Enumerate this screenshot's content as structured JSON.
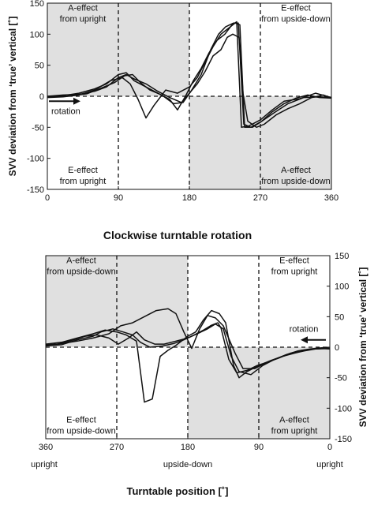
{
  "mid_title": "Clockwise turntable rotation",
  "bottom_title": "Turntable position [˚]",
  "chart_data": [
    {
      "type": "line",
      "id": "top",
      "xlim": [
        0,
        360
      ],
      "ylim": [
        -150,
        150
      ],
      "x_ticks": [
        0,
        90,
        180,
        270,
        360
      ],
      "y_ticks": [
        -150,
        -100,
        -50,
        0,
        50,
        100,
        150
      ],
      "x_tick_labels": [
        "0",
        "90",
        "180",
        "270",
        "360"
      ],
      "ylabel": "SVV deviation from ‘true’ vertical [˚]",
      "grid": false,
      "shaded_regions": [
        {
          "x": [
            0,
            180
          ],
          "y": [
            0,
            150
          ]
        },
        {
          "x": [
            180,
            360
          ],
          "y": [
            -150,
            0
          ]
        }
      ],
      "dashed_vertical_lines": [
        90,
        180,
        270
      ],
      "zero_line": "dashed",
      "annotations": [
        {
          "lines": [
            "A-effect",
            "from upright"
          ],
          "x": 45,
          "y": 143
        },
        {
          "lines": [
            "E-effect",
            "from upside-down"
          ],
          "x": 315,
          "y": 143
        },
        {
          "lines": [
            "E-effect",
            "from upright"
          ],
          "x": 45,
          "y": -118
        },
        {
          "lines": [
            "A-effect",
            "from upside-down"
          ],
          "x": 315,
          "y": -118
        }
      ],
      "rotation_arrow": {
        "label": "rotation",
        "direction": "right",
        "x": [
          2,
          42
        ],
        "y": -8
      },
      "series": [
        {
          "values": [
            [
              0,
              -2
            ],
            [
              20,
              -1
            ],
            [
              40,
              2
            ],
            [
              60,
              10
            ],
            [
              80,
              25
            ],
            [
              95,
              30
            ],
            [
              105,
              20
            ],
            [
              115,
              -5
            ],
            [
              125,
              -35
            ],
            [
              135,
              -15
            ],
            [
              150,
              10
            ],
            [
              165,
              5
            ],
            [
              180,
              15
            ],
            [
              190,
              30
            ],
            [
              200,
              55
            ],
            [
              210,
              80
            ],
            [
              220,
              100
            ],
            [
              230,
              110
            ],
            [
              238,
              118
            ],
            [
              244,
              115
            ],
            [
              250,
              -50
            ],
            [
              260,
              -50
            ],
            [
              270,
              -42
            ],
            [
              285,
              -25
            ],
            [
              300,
              -12
            ],
            [
              315,
              -3
            ],
            [
              330,
              2
            ],
            [
              345,
              -2
            ],
            [
              360,
              -3
            ]
          ]
        },
        {
          "values": [
            [
              0,
              -1
            ],
            [
              20,
              1
            ],
            [
              40,
              5
            ],
            [
              60,
              12
            ],
            [
              75,
              20
            ],
            [
              90,
              35
            ],
            [
              100,
              38
            ],
            [
              110,
              25
            ],
            [
              125,
              15
            ],
            [
              140,
              5
            ],
            [
              155,
              -5
            ],
            [
              165,
              -22
            ],
            [
              175,
              0
            ],
            [
              185,
              25
            ],
            [
              195,
              45
            ],
            [
              205,
              70
            ],
            [
              215,
              90
            ],
            [
              225,
              100
            ],
            [
              234,
              115
            ],
            [
              240,
              120
            ],
            [
              246,
              -50
            ],
            [
              255,
              -48
            ],
            [
              270,
              -38
            ],
            [
              285,
              -22
            ],
            [
              300,
              -8
            ],
            [
              320,
              -4
            ],
            [
              340,
              5
            ],
            [
              360,
              -2
            ]
          ]
        },
        {
          "values": [
            [
              0,
              0
            ],
            [
              20,
              2
            ],
            [
              40,
              3
            ],
            [
              60,
              8
            ],
            [
              75,
              15
            ],
            [
              90,
              30
            ],
            [
              100,
              35
            ],
            [
              110,
              28
            ],
            [
              125,
              20
            ],
            [
              140,
              8
            ],
            [
              155,
              -2
            ],
            [
              170,
              -10
            ],
            [
              180,
              5
            ],
            [
              190,
              20
            ],
            [
              200,
              40
            ],
            [
              210,
              65
            ],
            [
              220,
              75
            ],
            [
              228,
              95
            ],
            [
              235,
              100
            ],
            [
              243,
              95
            ],
            [
              248,
              5
            ],
            [
              254,
              -40
            ],
            [
              265,
              -50
            ],
            [
              275,
              -45
            ],
            [
              290,
              -30
            ],
            [
              305,
              -20
            ],
            [
              320,
              -12
            ],
            [
              335,
              -2
            ],
            [
              350,
              2
            ],
            [
              360,
              -3
            ]
          ]
        },
        {
          "values": [
            [
              0,
              -1
            ],
            [
              25,
              0
            ],
            [
              50,
              4
            ],
            [
              70,
              14
            ],
            [
              85,
              22
            ],
            [
              98,
              33
            ],
            [
              108,
              35
            ],
            [
              118,
              22
            ],
            [
              130,
              10
            ],
            [
              145,
              2
            ],
            [
              160,
              -12
            ],
            [
              172,
              -10
            ],
            [
              182,
              8
            ],
            [
              195,
              35
            ],
            [
              207,
              75
            ],
            [
              217,
              100
            ],
            [
              226,
              112
            ],
            [
              236,
              118
            ],
            [
              242,
              118
            ],
            [
              249,
              -45
            ],
            [
              258,
              -50
            ],
            [
              272,
              -40
            ],
            [
              288,
              -26
            ],
            [
              305,
              -12
            ],
            [
              325,
              -2
            ],
            [
              345,
              -1
            ],
            [
              360,
              -2
            ]
          ]
        }
      ]
    },
    {
      "type": "line",
      "id": "bottom",
      "xlim": [
        360,
        0
      ],
      "ylim": [
        -150,
        150
      ],
      "x_ticks": [
        360,
        270,
        180,
        90,
        0
      ],
      "y_ticks": [
        -150,
        -100,
        -50,
        0,
        50,
        100,
        150
      ],
      "x_tick_labels": [
        "360",
        "270",
        "180",
        "90",
        "0"
      ],
      "x_sub_labels": [
        {
          "x": 360,
          "text": "upright"
        },
        {
          "x": 180,
          "text": "upside-down"
        },
        {
          "x": 0,
          "text": "upright"
        }
      ],
      "ylabel": "SVV deviation from ‘true’ vertical [˚]",
      "y_axis_side": "right",
      "grid": false,
      "shaded_regions": [
        {
          "x": [
            360,
            180
          ],
          "y": [
            0,
            150
          ]
        },
        {
          "x": [
            180,
            0
          ],
          "y": [
            -150,
            0
          ]
        }
      ],
      "dashed_vertical_lines": [
        270,
        180,
        90
      ],
      "zero_line": "dashed",
      "annotations": [
        {
          "lines": [
            "A-effect",
            "from upside-down"
          ],
          "x": 315,
          "y": 143
        },
        {
          "lines": [
            "E-effect",
            "from upright"
          ],
          "x": 45,
          "y": 143
        },
        {
          "lines": [
            "E-effect",
            "from upside-down"
          ],
          "x": 315,
          "y": -118
        },
        {
          "lines": [
            "A-effect",
            "from upright"
          ],
          "x": 45,
          "y": -118
        }
      ],
      "rotation_arrow": {
        "label": "rotation",
        "direction": "left",
        "x": [
          5,
          37
        ],
        "y": 12
      },
      "series": [
        {
          "values": [
            [
              360,
              5
            ],
            [
              340,
              8
            ],
            [
              320,
              15
            ],
            [
              300,
              22
            ],
            [
              285,
              28
            ],
            [
              270,
              25
            ],
            [
              258,
              20
            ],
            [
              245,
              10
            ],
            [
              235,
              -90
            ],
            [
              225,
              -85
            ],
            [
              215,
              -15
            ],
            [
              205,
              -5
            ],
            [
              195,
              3
            ],
            [
              180,
              18
            ],
            [
              170,
              25
            ],
            [
              160,
              45
            ],
            [
              150,
              60
            ],
            [
              140,
              55
            ],
            [
              132,
              40
            ],
            [
              122,
              -30
            ],
            [
              115,
              -50
            ],
            [
              105,
              -40
            ],
            [
              90,
              -30
            ],
            [
              75,
              -22
            ],
            [
              60,
              -15
            ],
            [
              45,
              -10
            ],
            [
              30,
              -5
            ],
            [
              15,
              -2
            ],
            [
              0,
              -3
            ]
          ]
        },
        {
          "values": [
            [
              360,
              3
            ],
            [
              340,
              6
            ],
            [
              320,
              10
            ],
            [
              300,
              15
            ],
            [
              280,
              22
            ],
            [
              265,
              35
            ],
            [
              250,
              40
            ],
            [
              235,
              50
            ],
            [
              220,
              60
            ],
            [
              205,
              63
            ],
            [
              195,
              55
            ],
            [
              185,
              25
            ],
            [
              175,
              -2
            ],
            [
              165,
              30
            ],
            [
              155,
              52
            ],
            [
              145,
              48
            ],
            [
              135,
              35
            ],
            [
              120,
              -10
            ],
            [
              110,
              -35
            ],
            [
              95,
              -35
            ],
            [
              80,
              -25
            ],
            [
              65,
              -18
            ],
            [
              50,
              -10
            ],
            [
              35,
              -5
            ],
            [
              20,
              -3
            ],
            [
              0,
              -2
            ]
          ]
        },
        {
          "values": [
            [
              360,
              4
            ],
            [
              345,
              5
            ],
            [
              330,
              10
            ],
            [
              310,
              18
            ],
            [
              295,
              20
            ],
            [
              280,
              15
            ],
            [
              268,
              5
            ],
            [
              255,
              15
            ],
            [
              245,
              25
            ],
            [
              235,
              12
            ],
            [
              222,
              5
            ],
            [
              210,
              5
            ],
            [
              195,
              10
            ],
            [
              180,
              15
            ],
            [
              168,
              22
            ],
            [
              155,
              30
            ],
            [
              145,
              38
            ],
            [
              135,
              30
            ],
            [
              125,
              -15
            ],
            [
              115,
              -40
            ],
            [
              100,
              -45
            ],
            [
              85,
              -30
            ],
            [
              70,
              -20
            ],
            [
              55,
              -12
            ],
            [
              40,
              -6
            ],
            [
              25,
              -3
            ],
            [
              10,
              -1
            ],
            [
              0,
              -2
            ]
          ]
        },
        {
          "values": [
            [
              360,
              2
            ],
            [
              340,
              4
            ],
            [
              320,
              12
            ],
            [
              300,
              18
            ],
            [
              290,
              25
            ],
            [
              275,
              30
            ],
            [
              262,
              25
            ],
            [
              250,
              20
            ],
            [
              240,
              8
            ],
            [
              228,
              0
            ],
            [
              212,
              2
            ],
            [
              198,
              6
            ],
            [
              185,
              12
            ],
            [
              172,
              20
            ],
            [
              160,
              28
            ],
            [
              150,
              36
            ],
            [
              142,
              40
            ],
            [
              138,
              32
            ],
            [
              128,
              -20
            ],
            [
              118,
              -42
            ],
            [
              105,
              -38
            ],
            [
              92,
              -30
            ],
            [
              78,
              -24
            ],
            [
              62,
              -16
            ],
            [
              48,
              -10
            ],
            [
              32,
              -6
            ],
            [
              18,
              -3
            ],
            [
              0,
              -2
            ]
          ]
        }
      ]
    }
  ]
}
